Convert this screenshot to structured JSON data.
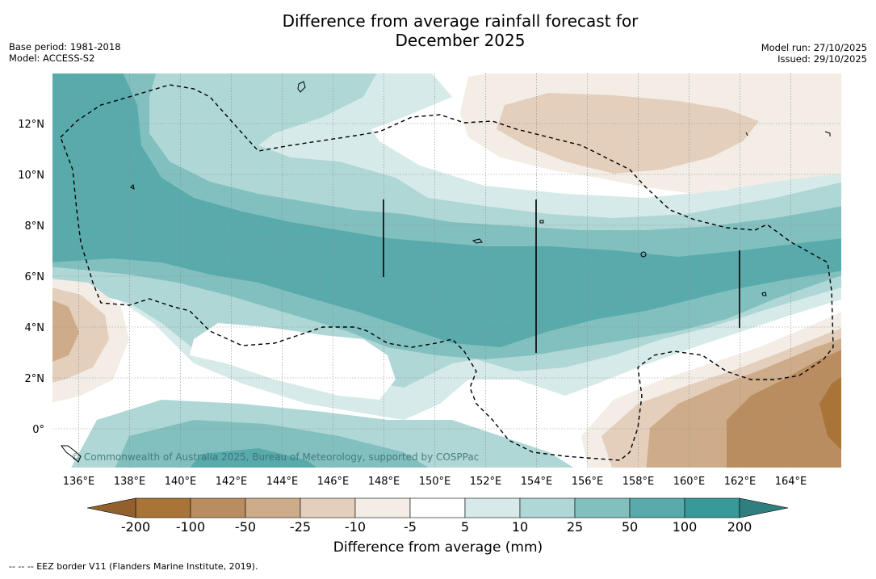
{
  "header": {
    "title_line1": "Difference from average rainfall forecast for",
    "title_line2": "December 2025",
    "base_period": "Base period: 1981-2018",
    "model": "Model: ACCESS-S2",
    "model_run": "Model run: 27/10/2025",
    "issued": "Issued: 29/10/2025"
  },
  "map": {
    "lon_labels": [
      "136°E",
      "138°E",
      "140°E",
      "142°E",
      "144°E",
      "146°E",
      "148°E",
      "150°E",
      "152°E",
      "154°E",
      "156°E",
      "158°E",
      "160°E",
      "162°E",
      "164°E"
    ],
    "lat_labels": [
      "12°N",
      "10°N",
      "8°N",
      "6°N",
      "4°N",
      "2°N",
      "0°"
    ],
    "copyright": "© Commonwealth of Australia 2025, Bureau of Meteorology, supported by COSPPac"
  },
  "colorbar": {
    "labels": [
      "-200",
      "-100",
      "-50",
      "-25",
      "-10",
      "-5",
      "5",
      "10",
      "25",
      "50",
      "100",
      "200"
    ],
    "colors": [
      "#a87438",
      "#ba8d60",
      "#cfac89",
      "#e4cfbd",
      "#f3ede6",
      "#ffffff",
      "#d6eae9",
      "#afd7d6",
      "#82c0bf",
      "#59aaab",
      "#379998"
    ],
    "under_color": "#91602c",
    "over_color": "#2e7f7e",
    "title": "Difference from average (mm)"
  },
  "footnote": "--  --  -- EEZ border V11 (Flanders Marine Institute, 2019)."
}
